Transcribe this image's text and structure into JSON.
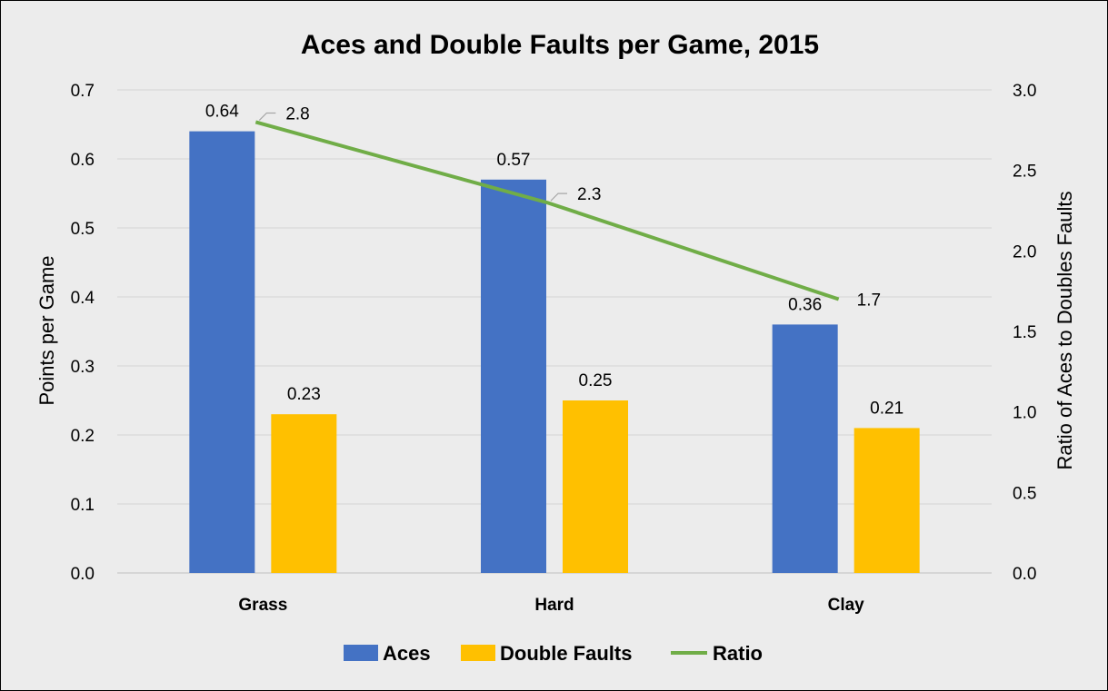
{
  "chart_data": {
    "type": "bar",
    "title": "Aces and Double Faults per Game, 2015",
    "categories": [
      "Grass",
      "Hard",
      "Clay"
    ],
    "series": [
      {
        "name": "Aces",
        "values": [
          0.64,
          0.57,
          0.36
        ],
        "color": "#4472c4",
        "axis": "left",
        "kind": "bar",
        "labels": [
          "0.64",
          "0.57",
          "0.36"
        ]
      },
      {
        "name": "Double Faults",
        "values": [
          0.23,
          0.25,
          0.21
        ],
        "color": "#ffc000",
        "axis": "left",
        "kind": "bar",
        "labels": [
          "0.23",
          "0.25",
          "0.21"
        ]
      },
      {
        "name": "Ratio",
        "values": [
          2.8,
          2.3,
          1.7
        ],
        "color": "#70ad47",
        "axis": "right",
        "kind": "line",
        "labels": [
          "2.8",
          "2.3",
          "1.7"
        ]
      }
    ],
    "ylabel": "Points per Game",
    "y2label": "Ratio of Aces to Doubles Faults",
    "ylim": [
      0,
      0.7
    ],
    "y2lim": [
      0,
      3.0
    ],
    "yticks": [
      "0.0",
      "0.1",
      "0.2",
      "0.3",
      "0.4",
      "0.5",
      "0.6",
      "0.7"
    ],
    "y2ticks": [
      "0.0",
      "0.5",
      "1.0",
      "1.5",
      "2.0",
      "2.5",
      "3.0"
    ],
    "grid": true,
    "legend": "bottom"
  }
}
